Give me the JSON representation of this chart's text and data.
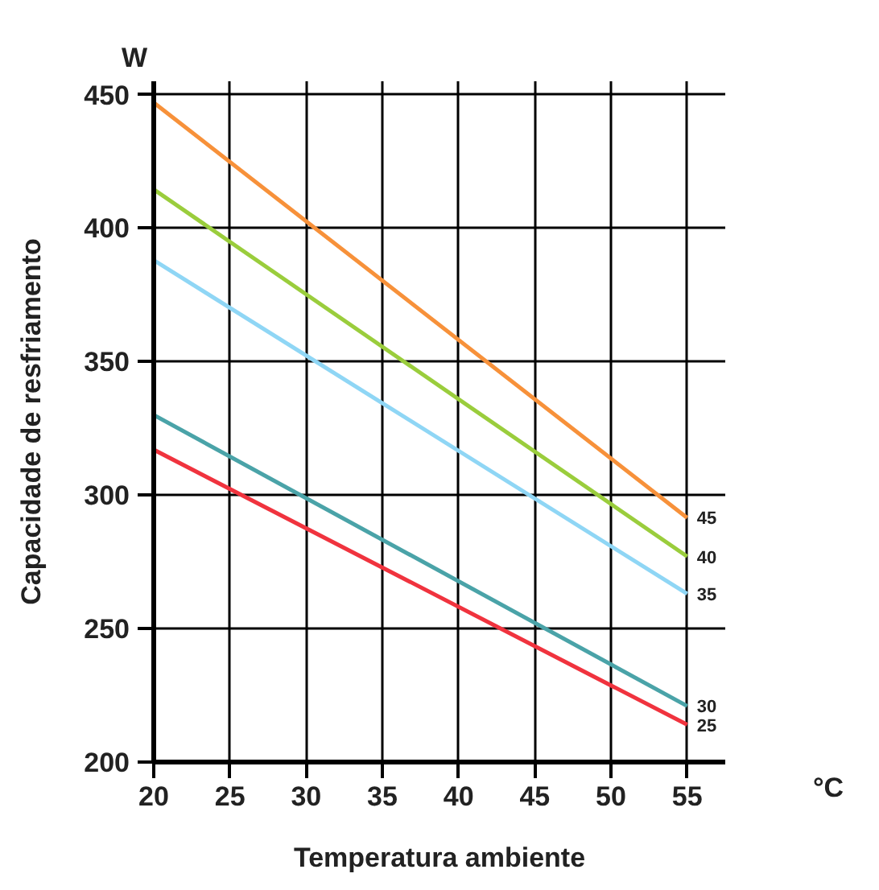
{
  "chart_data": {
    "type": "line",
    "xlabel": "Temperatura ambiente",
    "ylabel": "Capacidade de resfriamento",
    "annotations": [
      "W",
      "°C"
    ],
    "x": [
      20,
      55
    ],
    "xlim": [
      20,
      57.5
    ],
    "ylim": [
      200,
      455
    ],
    "xticks": [
      20,
      25,
      30,
      35,
      40,
      45,
      50,
      55
    ],
    "yticks": [
      200,
      250,
      300,
      350,
      400,
      450
    ],
    "grid": true,
    "legend": false,
    "marker": "none",
    "line_style": "solid",
    "series": [
      {
        "name": "45",
        "color": "#f7913a",
        "values": [
          447,
          291.5
        ]
      },
      {
        "name": "40",
        "color": "#9acd3c",
        "values": [
          414.5,
          277
        ]
      },
      {
        "name": "35",
        "color": "#8fd6f5",
        "values": [
          388,
          263
        ]
      },
      {
        "name": "30",
        "color": "#4aa3a8",
        "values": [
          330,
          221
        ]
      },
      {
        "name": "25",
        "color": "#f0333e",
        "values": [
          317,
          214
        ]
      }
    ]
  }
}
